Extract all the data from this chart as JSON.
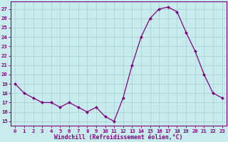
{
  "hours": [
    0,
    1,
    2,
    3,
    4,
    5,
    6,
    7,
    8,
    9,
    10,
    11,
    12,
    13,
    14,
    15,
    16,
    17,
    18,
    19,
    20,
    21,
    22,
    23
  ],
  "values": [
    19,
    18,
    17.5,
    17,
    17,
    16.5,
    17,
    16.5,
    16,
    16.5,
    15.5,
    15,
    17.5,
    21,
    24,
    26,
    27,
    27.2,
    26.7,
    24.5,
    22.5,
    20,
    18,
    17.5
  ],
  "line_color": "#800080",
  "marker_color": "#800080",
  "bg_color": "#c8eced",
  "grid_color": "#a8d4d5",
  "xlabel": "Windchill (Refroidissement éolien,°C)",
  "ylabel_ticks": [
    15,
    16,
    17,
    18,
    19,
    20,
    21,
    22,
    23,
    24,
    25,
    26,
    27
  ],
  "ylim": [
    14.5,
    27.8
  ],
  "xlim": [
    -0.5,
    23.5
  ],
  "tick_color": "#800080",
  "label_color": "#800080",
  "axis_color": "#800080",
  "xlabel_fontsize": 5.8,
  "tick_fontsize": 5.2
}
